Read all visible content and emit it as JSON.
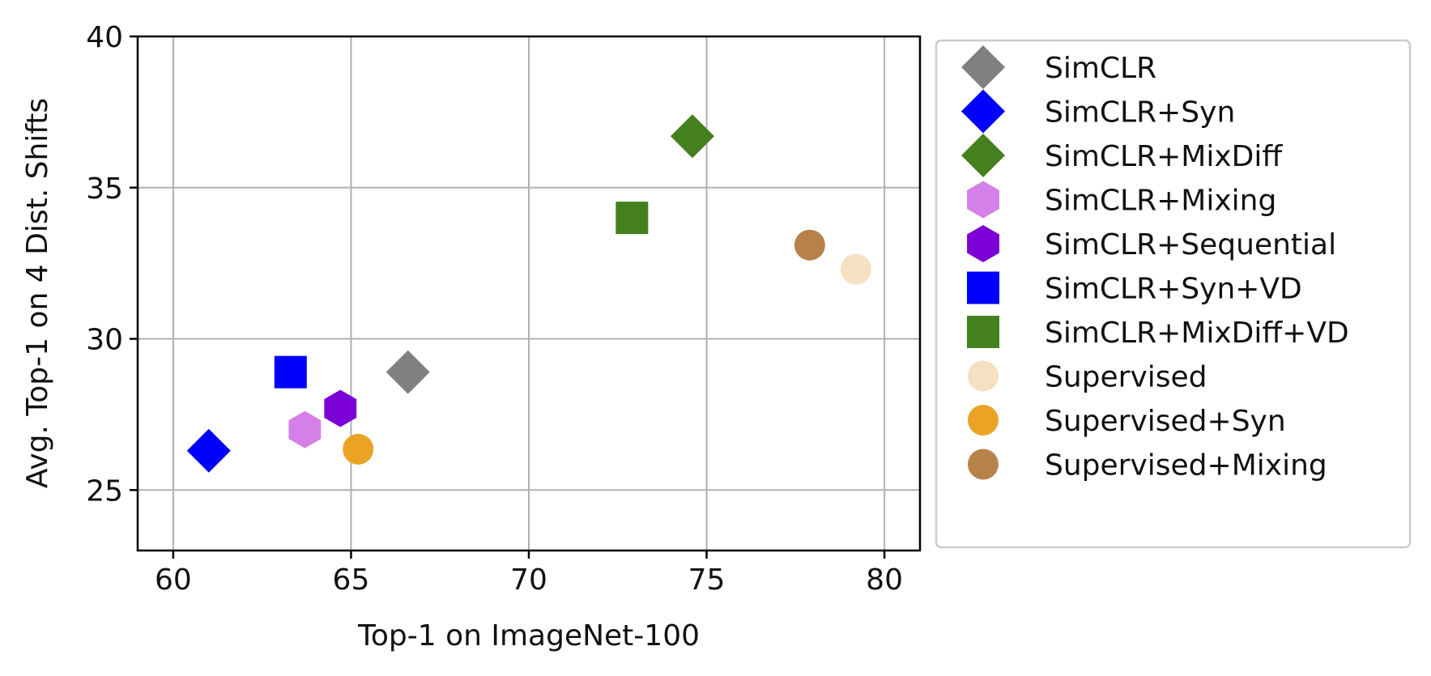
{
  "chart_data": {
    "type": "scatter",
    "title": "",
    "xlabel": "Top-1 on ImageNet-100",
    "ylabel": "Avg. Top-1 on 4 Dist. Shifts",
    "xlim": [
      59,
      81
    ],
    "ylim": [
      23,
      40
    ],
    "xticks": [
      60,
      65,
      70,
      75,
      80
    ],
    "yticks": [
      25,
      30,
      35,
      40
    ],
    "grid": true,
    "legend_position": "outside-right",
    "series": [
      {
        "name": "SimCLR",
        "marker": "diamond",
        "color": "#808080",
        "x": 66.6,
        "y": 28.9
      },
      {
        "name": "SimCLR+Syn",
        "marker": "diamond",
        "color": "#0000ff",
        "x": 61.0,
        "y": 26.3
      },
      {
        "name": "SimCLR+MixDiff",
        "marker": "diamond",
        "color": "#45801f",
        "x": 74.6,
        "y": 36.7
      },
      {
        "name": "SimCLR+Mixing",
        "marker": "hexagon",
        "color": "#d580e8",
        "x": 63.7,
        "y": 27.0
      },
      {
        "name": "SimCLR+Sequential",
        "marker": "hexagon",
        "color": "#7b00d6",
        "x": 64.7,
        "y": 27.7
      },
      {
        "name": "SimCLR+Syn+VD",
        "marker": "square",
        "color": "#0000ff",
        "x": 63.3,
        "y": 28.9
      },
      {
        "name": "SimCLR+MixDiff+VD",
        "marker": "square",
        "color": "#45801f",
        "x": 72.9,
        "y": 34.0
      },
      {
        "name": "Supervised",
        "marker": "circle",
        "color": "#f5e0c2",
        "x": 79.2,
        "y": 32.3
      },
      {
        "name": "Supervised+Syn",
        "marker": "circle",
        "color": "#eba326",
        "x": 65.2,
        "y": 26.35
      },
      {
        "name": "Supervised+Mixing",
        "marker": "circle",
        "color": "#b7824a",
        "x": 77.9,
        "y": 33.1
      }
    ]
  }
}
